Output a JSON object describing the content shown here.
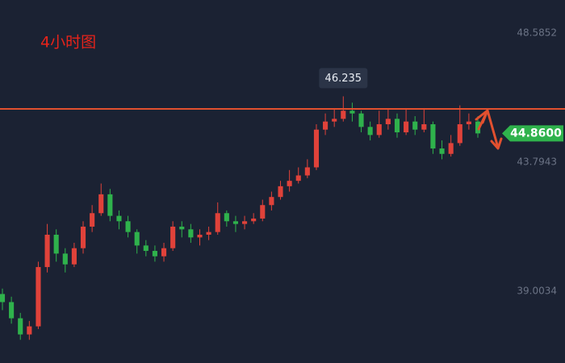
{
  "chart_data": {
    "type": "candlestick",
    "title": "4小时图",
    "open": [
      38.9,
      38.6,
      38.0,
      37.4,
      37.7,
      39.9,
      41.1,
      40.4,
      40.0,
      40.6,
      41.4,
      41.9,
      42.6,
      41.8,
      41.6,
      41.2,
      40.7,
      40.5,
      40.3,
      40.6,
      41.4,
      41.3,
      41.0,
      41.1,
      41.2,
      41.9,
      41.6,
      41.5,
      41.6,
      41.7,
      42.2,
      42.5,
      42.9,
      43.1,
      43.3,
      43.6,
      45.0,
      45.3,
      45.4,
      45.7,
      45.6,
      45.1,
      44.8,
      45.2,
      45.4,
      44.9,
      45.3,
      45.0,
      45.2,
      44.3,
      44.1,
      44.5,
      45.2,
      45.3
    ],
    "high": [
      39.1,
      38.8,
      38.2,
      37.9,
      40.1,
      41.5,
      41.3,
      40.6,
      40.8,
      41.6,
      42.2,
      43.0,
      42.8,
      42.0,
      41.8,
      41.3,
      40.9,
      40.7,
      40.8,
      41.6,
      41.6,
      41.5,
      41.3,
      41.4,
      42.3,
      42.0,
      41.8,
      41.8,
      41.9,
      42.4,
      42.7,
      43.1,
      43.5,
      43.6,
      43.9,
      45.2,
      45.6,
      45.8,
      46.235,
      46.0,
      45.7,
      45.3,
      45.7,
      45.8,
      45.6,
      45.8,
      45.5,
      45.8,
      45.3,
      44.6,
      44.8,
      45.9,
      45.6,
      45.5
    ],
    "low": [
      38.3,
      37.8,
      37.2,
      37.2,
      37.6,
      39.7,
      40.1,
      39.7,
      39.9,
      40.4,
      41.2,
      41.8,
      41.6,
      41.3,
      41.0,
      40.4,
      40.3,
      40.1,
      40.1,
      40.5,
      41.0,
      40.8,
      40.7,
      40.9,
      41.1,
      41.4,
      41.2,
      41.3,
      41.5,
      41.6,
      42.0,
      42.4,
      42.7,
      43.0,
      43.2,
      43.5,
      44.8,
      45.1,
      45.3,
      45.3,
      44.9,
      44.6,
      44.7,
      45.0,
      44.7,
      44.8,
      44.8,
      44.9,
      44.1,
      43.9,
      44.0,
      44.4,
      45.0,
      44.7
    ],
    "close": [
      38.6,
      38.0,
      37.4,
      37.7,
      39.9,
      41.1,
      40.4,
      40.0,
      40.6,
      41.4,
      41.9,
      42.6,
      41.8,
      41.6,
      41.2,
      40.7,
      40.5,
      40.3,
      40.6,
      41.4,
      41.3,
      41.0,
      41.1,
      41.2,
      41.9,
      41.6,
      41.5,
      41.6,
      41.7,
      42.2,
      42.5,
      42.9,
      43.1,
      43.3,
      43.6,
      45.0,
      45.3,
      45.4,
      45.7,
      45.6,
      45.1,
      44.8,
      45.2,
      45.4,
      44.9,
      45.3,
      45.0,
      45.2,
      44.3,
      44.1,
      44.5,
      45.2,
      45.3,
      44.86
    ],
    "up_color": "#e0423a",
    "down_color": "#2fb24c",
    "ylim": [
      36.34,
      49.81
    ],
    "yticks": [
      48.5852,
      43.7943,
      39.0034
    ],
    "hline": 45.77,
    "hline_color": "#e2502f",
    "high_marker": 46.235,
    "last_price": {
      "value": 44.86,
      "label": "44.8600"
    }
  }
}
